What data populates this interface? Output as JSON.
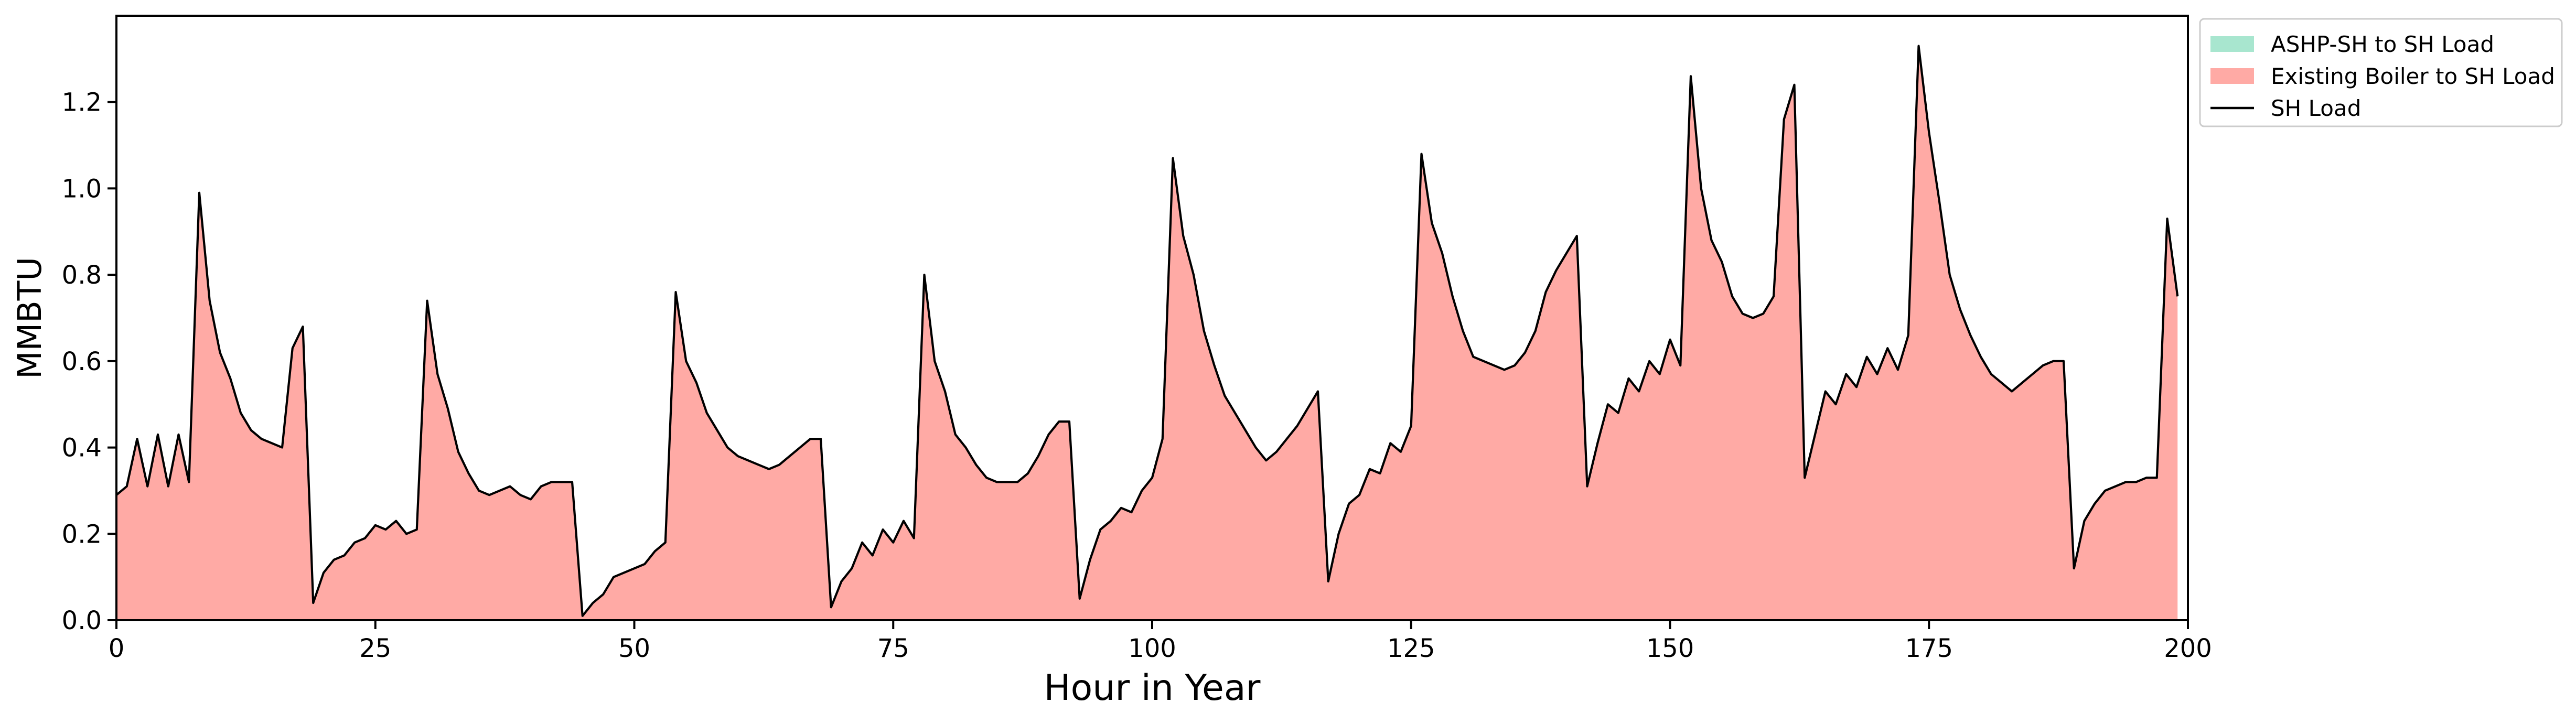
{
  "chart_data": {
    "type": "area",
    "title": "",
    "xlabel": "Hour in Year",
    "ylabel": "MMBTU",
    "xlim": [
      0,
      200
    ],
    "ylim": [
      0,
      1.4
    ],
    "xticks": [
      0,
      25,
      50,
      75,
      100,
      125,
      150,
      175,
      200
    ],
    "xtick_labels": [
      "0",
      "25",
      "50",
      "75",
      "100",
      "125",
      "150",
      "175",
      "200"
    ],
    "yticks": [
      0.0,
      0.2,
      0.4,
      0.6,
      0.8,
      1.0,
      1.2
    ],
    "ytick_labels": [
      "0.0",
      "0.2",
      "0.4",
      "0.6",
      "0.8",
      "1.0",
      "1.2"
    ],
    "grid": false,
    "legend_position": "outside-top-right",
    "legend": [
      {
        "label": "ASHP-SH to SH Load",
        "kind": "patch",
        "color": "#a8e6cf"
      },
      {
        "label": "Existing Boiler to SH Load",
        "kind": "patch",
        "color": "#ffaaa5"
      },
      {
        "label": "SH Load",
        "kind": "line",
        "color": "#000000"
      }
    ],
    "series": [
      {
        "name": "ASHP-SH to SH Load",
        "kind": "stacked-area",
        "color": "#a8e6cf",
        "values": "all zero"
      },
      {
        "name": "Existing Boiler to SH Load",
        "kind": "stacked-area",
        "color": "#ffaaa5",
        "values": "equal to SH Load"
      },
      {
        "name": "SH Load",
        "kind": "line",
        "color": "#000000",
        "x_start": 0,
        "x_step": 1,
        "values": [
          0.29,
          0.31,
          0.42,
          0.31,
          0.43,
          0.31,
          0.43,
          0.32,
          0.99,
          0.74,
          0.62,
          0.56,
          0.48,
          0.44,
          0.42,
          0.41,
          0.4,
          0.63,
          0.68,
          0.04,
          0.11,
          0.14,
          0.15,
          0.18,
          0.19,
          0.22,
          0.21,
          0.23,
          0.2,
          0.21,
          0.74,
          0.57,
          0.49,
          0.39,
          0.34,
          0.3,
          0.29,
          0.3,
          0.31,
          0.29,
          0.28,
          0.31,
          0.32,
          0.32,
          0.32,
          0.01,
          0.04,
          0.06,
          0.1,
          0.11,
          0.12,
          0.13,
          0.16,
          0.18,
          0.76,
          0.6,
          0.55,
          0.48,
          0.44,
          0.4,
          0.38,
          0.37,
          0.36,
          0.35,
          0.36,
          0.38,
          0.4,
          0.42,
          0.42,
          0.03,
          0.09,
          0.12,
          0.18,
          0.15,
          0.21,
          0.18,
          0.23,
          0.19,
          0.8,
          0.6,
          0.53,
          0.43,
          0.4,
          0.36,
          0.33,
          0.32,
          0.32,
          0.32,
          0.34,
          0.38,
          0.43,
          0.46,
          0.46,
          0.05,
          0.14,
          0.21,
          0.23,
          0.26,
          0.25,
          0.3,
          0.33,
          0.42,
          1.07,
          0.89,
          0.8,
          0.67,
          0.59,
          0.52,
          0.48,
          0.44,
          0.4,
          0.37,
          0.39,
          0.42,
          0.45,
          0.49,
          0.53,
          0.09,
          0.2,
          0.27,
          0.29,
          0.35,
          0.34,
          0.41,
          0.39,
          0.45,
          1.08,
          0.92,
          0.85,
          0.75,
          0.67,
          0.61,
          0.6,
          0.59,
          0.58,
          0.59,
          0.62,
          0.67,
          0.76,
          0.81,
          0.85,
          0.89,
          0.31,
          0.41,
          0.5,
          0.48,
          0.56,
          0.53,
          0.6,
          0.57,
          0.65,
          0.59,
          1.26,
          1.0,
          0.88,
          0.83,
          0.75,
          0.71,
          0.7,
          0.71,
          0.75,
          1.16,
          1.24,
          0.33,
          0.43,
          0.53,
          0.5,
          0.57,
          0.54,
          0.61,
          0.57,
          0.63,
          0.58,
          0.66,
          1.33,
          1.13,
          0.97,
          0.8,
          0.72,
          0.66,
          0.61,
          0.57,
          0.55,
          0.53,
          0.55,
          0.57,
          0.59,
          0.6,
          0.6,
          0.12,
          0.23,
          0.27,
          0.3,
          0.31,
          0.32,
          0.32,
          0.33,
          0.33,
          0.93,
          0.75
        ]
      }
    ]
  }
}
